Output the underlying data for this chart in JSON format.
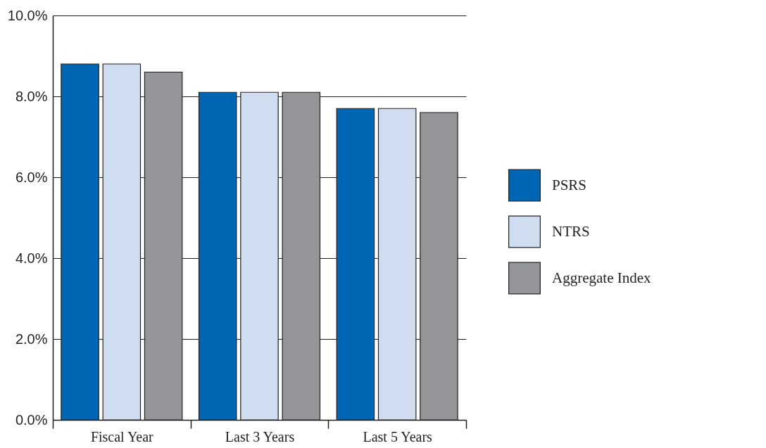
{
  "chart_data": {
    "type": "bar",
    "categories": [
      "Fiscal Year",
      "Last 3 Years",
      "Last 5 Years"
    ],
    "series": [
      {
        "name": "PSRS",
        "color": "#0066b3",
        "values": [
          8.8,
          8.1,
          7.7
        ]
      },
      {
        "name": "NTRS",
        "color": "#d0dcef",
        "values": [
          8.8,
          8.1,
          7.7
        ]
      },
      {
        "name": "Aggregate Index",
        "color": "#939598",
        "values": [
          8.6,
          8.1,
          7.6
        ]
      }
    ],
    "ylim": [
      0,
      10
    ],
    "yticks": [
      {
        "value": 0,
        "label": "0.0%"
      },
      {
        "value": 2,
        "label": "2.0%"
      },
      {
        "value": 4,
        "label": "4.0%"
      },
      {
        "value": 6,
        "label": "6.0%"
      },
      {
        "value": 8,
        "label": "8.0%"
      },
      {
        "value": 10,
        "label": "10.0%"
      }
    ],
    "grid": "y",
    "legend": "right"
  }
}
